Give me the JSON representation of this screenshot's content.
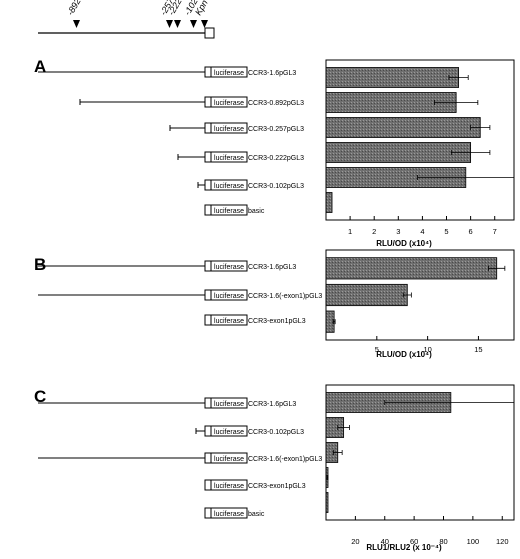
{
  "top_map": {
    "markers": [
      "-892",
      "-257",
      "-222",
      "-102"
    ],
    "site_label": "Kpn I"
  },
  "luciferase_text": "luciferase",
  "chart_data": [
    {
      "type": "bar",
      "panel": "A",
      "orientation": "horizontal",
      "categories": [
        "CCR3-1.6pGL3",
        "CCR3-0.892pGL3",
        "CCR3-0.257pGL3",
        "CCR3-0.222pGL3",
        "CCR3-0.102pGL3",
        "basic"
      ],
      "values": [
        5.5,
        5.4,
        6.4,
        6.0,
        5.8,
        0.25
      ],
      "errors": [
        0.4,
        0.9,
        0.4,
        0.8,
        2.0,
        0
      ],
      "xlabel": "RLU/OD (x10⁴)",
      "xticks": [
        1,
        2,
        3,
        4,
        5,
        6,
        7
      ],
      "xlim": [
        0,
        7.8
      ]
    },
    {
      "type": "bar",
      "panel": "B",
      "orientation": "horizontal",
      "categories": [
        "CCR3-1.6pGL3",
        "CCR3-1.6(-exon1)pGL3",
        "CCR3-exon1pGL3"
      ],
      "values": [
        16.8,
        8.0,
        0.8
      ],
      "errors": [
        0.8,
        0.4,
        0.1
      ],
      "xlabel": "RLU/OD (x10⁴)",
      "xticks": [
        5,
        10,
        15
      ],
      "xlim": [
        0,
        18.5
      ]
    },
    {
      "type": "bar",
      "panel": "C",
      "orientation": "horizontal",
      "categories": [
        "CCR3-1.6pGL3",
        "CCR3-0.102pGL3",
        "CCR3-1.6(-exon1)pGL3",
        "CCR3-exon1pGL3",
        "basic"
      ],
      "values": [
        85,
        12,
        8,
        1,
        0.3
      ],
      "errors": [
        45,
        4,
        3,
        0.3,
        0
      ],
      "xlabel": "RLU1/RLU2 (x 10⁻⁴)",
      "xticks": [
        20,
        40,
        60,
        80,
        100,
        120
      ],
      "xlim": [
        0,
        128
      ]
    }
  ]
}
